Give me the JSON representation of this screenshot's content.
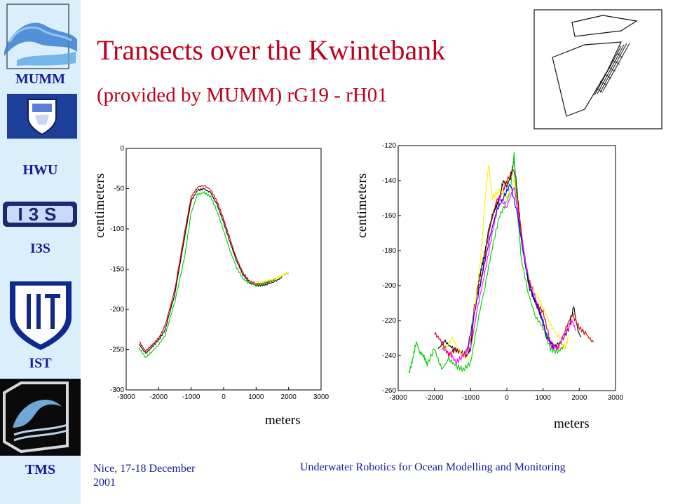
{
  "sidebar": {
    "labels": [
      "MUMM",
      "HWU",
      "I3S",
      "IST",
      "TMS"
    ],
    "i3s_logo_text": "I3S"
  },
  "header": {
    "title": "Transects over the Kwintebank",
    "subtitle": "(provided by MUMM) rG19 - rH01"
  },
  "footer": {
    "left": "Nice, 17-18 December 2001",
    "right": "Underwater Robotics for Ocean Modelling and Monitoring"
  },
  "colors": {
    "sidebar_bg": "#dbeefb",
    "title": "#c0001a",
    "label_blue": "#1a1a99",
    "series": [
      "#000000",
      "#d40000",
      "#00cc00",
      "#ffee00",
      "#ff00ff",
      "#0000ff"
    ]
  },
  "chart_data": [
    {
      "type": "line",
      "xlabel": "meters",
      "ylabel": "centimeters",
      "xlim": [
        -3000,
        3000
      ],
      "ylim": [
        -300,
        0
      ],
      "xticks": [
        "-3000",
        "-2000",
        "-1000",
        "0",
        "1000",
        "2000",
        "3000"
      ],
      "yticks": [
        "0",
        "-50",
        "-100",
        "-150",
        "-200",
        "-250",
        "-300"
      ],
      "grid": false,
      "series": [
        {
          "color": "#000000",
          "points": [
            [
              -2600,
              -243
            ],
            [
              -2400,
              -255
            ],
            [
              -2200,
              -247
            ],
            [
              -2000,
              -238
            ],
            [
              -1800,
              -225
            ],
            [
              -1500,
              -180
            ],
            [
              -1200,
              -110
            ],
            [
              -1000,
              -65
            ],
            [
              -800,
              -52
            ],
            [
              -600,
              -50
            ],
            [
              -400,
              -55
            ],
            [
              -200,
              -70
            ],
            [
              0,
              -92
            ],
            [
              200,
              -117
            ],
            [
              400,
              -140
            ],
            [
              600,
              -157
            ],
            [
              800,
              -167
            ],
            [
              1000,
              -170
            ],
            [
              1200,
              -170
            ],
            [
              1400,
              -168
            ],
            [
              1600,
              -165
            ],
            [
              1800,
              -160
            ]
          ]
        },
        {
          "color": "#d40000",
          "points": [
            [
              -2600,
              -240
            ],
            [
              -2400,
              -252
            ],
            [
              -2200,
              -244
            ],
            [
              -2000,
              -236
            ],
            [
              -1800,
              -220
            ],
            [
              -1500,
              -175
            ],
            [
              -1200,
              -104
            ],
            [
              -1000,
              -60
            ],
            [
              -800,
              -48
            ],
            [
              -600,
              -46
            ],
            [
              -400,
              -51
            ],
            [
              -200,
              -66
            ],
            [
              0,
              -88
            ],
            [
              200,
              -113
            ],
            [
              400,
              -137
            ],
            [
              600,
              -155
            ],
            [
              800,
              -165
            ],
            [
              1000,
              -168
            ],
            [
              1200,
              -168
            ],
            [
              1400,
              -166
            ],
            [
              1600,
              -162
            ]
          ]
        },
        {
          "color": "#00cc00",
          "points": [
            [
              -2600,
              -248
            ],
            [
              -2400,
              -260
            ],
            [
              -2200,
              -252
            ],
            [
              -2000,
              -244
            ],
            [
              -1800,
              -232
            ],
            [
              -1500,
              -190
            ],
            [
              -1200,
              -135
            ],
            [
              -1000,
              -80
            ],
            [
              -800,
              -57
            ],
            [
              -600,
              -55
            ],
            [
              -400,
              -60
            ],
            [
              -200,
              -78
            ],
            [
              0,
              -102
            ],
            [
              200,
              -127
            ],
            [
              400,
              -148
            ],
            [
              600,
              -162
            ],
            [
              800,
              -168
            ],
            [
              1000,
              -170
            ],
            [
              1200,
              -168
            ],
            [
              1400,
              -165
            ],
            [
              1600,
              -162
            ],
            [
              1800,
              -158
            ],
            [
              2000,
              -155
            ]
          ]
        },
        {
          "color": "#ffee00",
          "points": [
            [
              1000,
              -166
            ],
            [
              1200,
              -166
            ],
            [
              1400,
              -164
            ],
            [
              1600,
              -162
            ],
            [
              1800,
              -158
            ],
            [
              2000,
              -154
            ]
          ]
        }
      ]
    },
    {
      "type": "line",
      "xlabel": "meters",
      "ylabel": "centimeters",
      "xlim": [
        -3000,
        3000
      ],
      "ylim": [
        -260,
        -120
      ],
      "xticks": [
        "-3000",
        "-2000",
        "-1000",
        "0",
        "1000",
        "2000",
        "3000"
      ],
      "yticks": [
        "-120",
        "-140",
        "-160",
        "-180",
        "-200",
        "-220",
        "-240",
        "-260"
      ],
      "grid": false,
      "series": [
        {
          "color": "#000000",
          "points": [
            [
              -1900,
              -236
            ],
            [
              -1700,
              -232
            ],
            [
              -1500,
              -236
            ],
            [
              -1300,
              -238
            ],
            [
              -1100,
              -240
            ],
            [
              -1000,
              -236
            ],
            [
              -900,
              -215
            ],
            [
              -800,
              -200
            ],
            [
              -700,
              -190
            ],
            [
              -600,
              -180
            ],
            [
              -500,
              -168
            ],
            [
              -400,
              -160
            ],
            [
              -300,
              -155
            ],
            [
              -200,
              -150
            ],
            [
              -100,
              -140
            ],
            [
              0,
              -143
            ],
            [
              100,
              -138
            ],
            [
              200,
              -128
            ],
            [
              300,
              -150
            ],
            [
              400,
              -170
            ],
            [
              500,
              -185
            ],
            [
              600,
              -200
            ],
            [
              800,
              -210
            ],
            [
              1000,
              -220
            ],
            [
              1100,
              -230
            ],
            [
              1300,
              -235
            ],
            [
              1500,
              -232
            ],
            [
              1700,
              -225
            ],
            [
              1850,
              -212
            ],
            [
              1950,
              -225
            ],
            [
              2050,
              -230
            ]
          ]
        },
        {
          "color": "#d40000",
          "points": [
            [
              -2000,
              -227
            ],
            [
              -1800,
              -232
            ],
            [
              -1600,
              -240
            ],
            [
              -1400,
              -236
            ],
            [
              -1200,
              -240
            ],
            [
              -1000,
              -232
            ],
            [
              -900,
              -212
            ],
            [
              -700,
              -195
            ],
            [
              -500,
              -170
            ],
            [
              -300,
              -152
            ],
            [
              -100,
              -146
            ],
            [
              0,
              -140
            ],
            [
              200,
              -134
            ],
            [
              400,
              -170
            ],
            [
              600,
              -198
            ],
            [
              800,
              -210
            ],
            [
              1000,
              -215
            ],
            [
              1200,
              -232
            ],
            [
              1400,
              -236
            ],
            [
              1600,
              -226
            ],
            [
              1800,
              -216
            ],
            [
              2000,
              -224
            ],
            [
              2200,
              -228
            ],
            [
              2400,
              -233
            ]
          ]
        },
        {
          "color": "#00cc00",
          "points": [
            [
              -2700,
              -250
            ],
            [
              -2600,
              -242
            ],
            [
              -2500,
              -232
            ],
            [
              -2400,
              -238
            ],
            [
              -2300,
              -240
            ],
            [
              -2200,
              -245
            ],
            [
              -2000,
              -236
            ],
            [
              -1800,
              -248
            ],
            [
              -1600,
              -242
            ],
            [
              -1400,
              -246
            ],
            [
              -1200,
              -248
            ],
            [
              -1000,
              -244
            ],
            [
              -800,
              -220
            ],
            [
              -600,
              -200
            ],
            [
              -400,
              -178
            ],
            [
              -200,
              -160
            ],
            [
              0,
              -152
            ],
            [
              100,
              -145
            ],
            [
              200,
              -125
            ],
            [
              300,
              -160
            ],
            [
              400,
              -185
            ],
            [
              600,
              -205
            ],
            [
              800,
              -218
            ],
            [
              1000,
              -224
            ],
            [
              1200,
              -236
            ],
            [
              1400,
              -238
            ],
            [
              1600,
              -234
            ]
          ]
        },
        {
          "color": "#ffee00",
          "points": [
            [
              -1700,
              -236
            ],
            [
              -1500,
              -230
            ],
            [
              -1300,
              -238
            ],
            [
              -1100,
              -242
            ],
            [
              -900,
              -215
            ],
            [
              -700,
              -180
            ],
            [
              -600,
              -150
            ],
            [
              -500,
              -130
            ],
            [
              -400,
              -150
            ],
            [
              -200,
              -145
            ],
            [
              0,
              -150
            ],
            [
              200,
              -140
            ],
            [
              400,
              -175
            ],
            [
              600,
              -195
            ],
            [
              800,
              -205
            ],
            [
              1000,
              -212
            ],
            [
              1200,
              -222
            ],
            [
              1400,
              -228
            ],
            [
              1600,
              -236
            ],
            [
              1700,
              -230
            ]
          ]
        },
        {
          "color": "#ff00ff",
          "points": [
            [
              -1800,
              -236
            ],
            [
              -1600,
              -238
            ],
            [
              -1400,
              -244
            ],
            [
              -1200,
              -240
            ],
            [
              -1000,
              -236
            ],
            [
              -800,
              -212
            ],
            [
              -600,
              -192
            ],
            [
              -400,
              -170
            ],
            [
              -200,
              -150
            ],
            [
              0,
              -155
            ],
            [
              200,
              -143
            ],
            [
              400,
              -172
            ],
            [
              600,
              -196
            ],
            [
              800,
              -208
            ],
            [
              1000,
              -222
            ],
            [
              1200,
              -234
            ],
            [
              1400,
              -236
            ],
            [
              1600,
              -228
            ],
            [
              1800,
              -220
            ],
            [
              1900,
              -225
            ]
          ]
        },
        {
          "color": "#0000ff",
          "points": [
            [
              -1100,
              -238
            ],
            [
              -900,
              -216
            ],
            [
              -700,
              -196
            ],
            [
              -500,
              -175
            ],
            [
              -300,
              -158
            ],
            [
              -100,
              -150
            ],
            [
              100,
              -142
            ],
            [
              300,
              -160
            ],
            [
              500,
              -188
            ],
            [
              700,
              -205
            ],
            [
              900,
              -215
            ],
            [
              1100,
              -228
            ],
            [
              1300,
              -236
            ]
          ]
        }
      ]
    }
  ]
}
